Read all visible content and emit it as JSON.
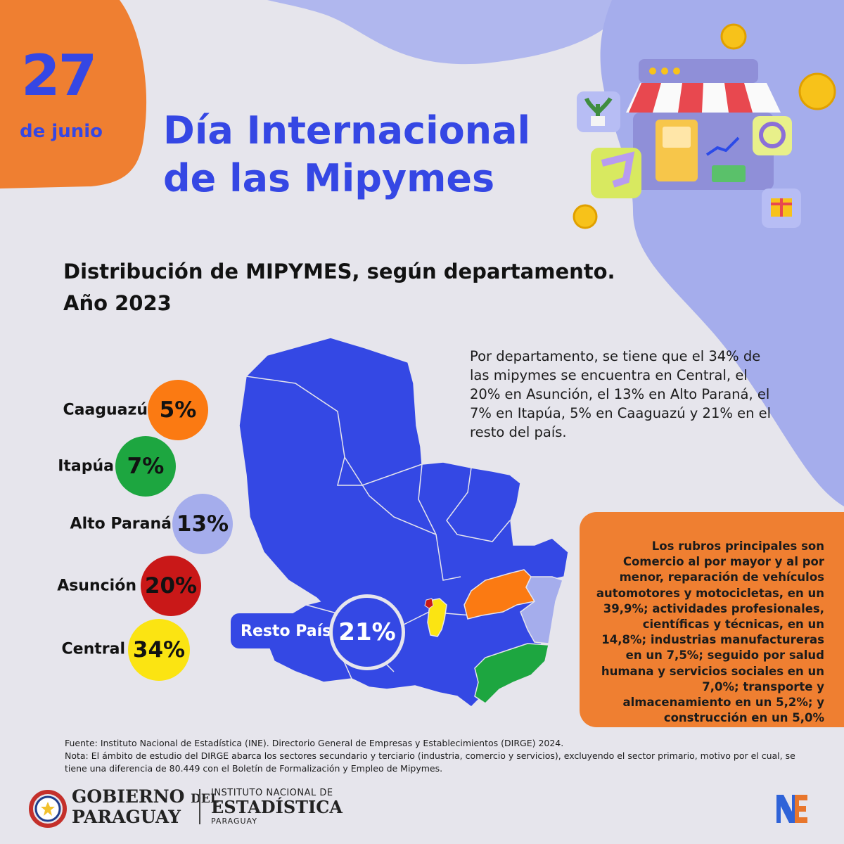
{
  "date": {
    "day": "27",
    "month": "de junio"
  },
  "title": {
    "line1": "Día Internacional",
    "line2": "de las Mipymes"
  },
  "subtitle": {
    "line1": "Distribución de MIPYMES, según departamento.",
    "line2": "Año 2023"
  },
  "colors": {
    "background": "#e6e5ec",
    "accent_blue": "#3547e4",
    "accent_orange": "#ef7f31",
    "lavender": "#a5adec",
    "caaguazu": "#fb7a12",
    "itapua": "#1da640",
    "alto_parana": "#a5adec",
    "asuncion": "#c91818",
    "central": "#fbe412",
    "resto": "#3448e4"
  },
  "chart_data": {
    "type": "bar",
    "title": "Distribución de MIPYMES, según departamento. Año 2023",
    "categories": [
      "Caaguazú",
      "Itapúa",
      "Alto Paraná",
      "Asunción",
      "Central",
      "Resto País"
    ],
    "values": [
      5,
      7,
      13,
      20,
      34,
      21
    ],
    "labels": [
      "5%",
      "7%",
      "13%",
      "20%",
      "34%",
      "21%"
    ],
    "unit": "%"
  },
  "description": "Por departamento, se tiene que el 34% de las mipymes se encuentra en Central, el 20% en Asunción, el 13% en Alto Paraná, el 7% en Itapúa, 5% en Caaguazú y 21% en el resto del país.",
  "sectors": "Los rubros principales son Comercio al por mayor y al por menor, reparación de vehículos automotores y motocicletas, en un 39,9%; actividades profesionales, científicas y técnicas, en un 14,8%; industrias manufactureras en un 7,5%; seguido por salud humana y servicios sociales en un 7,0%; transporte y almacenamiento en un 5,2%; y construcción en un 5,0%",
  "footnote": {
    "source": "Fuente: Instituto Nacional de Estadística (INE). Directorio General de Empresas y Establecimientos (DIRGE) 2024.",
    "note": "Nota: El ámbito de estudio del DIRGE abarca los sectores secundario y terciario (industria, comercio y servicios), excluyendo el sector primario, motivo por el cual, se tiene una diferencia de 80.449 con el Boletín de Formalización y Empleo de Mipymes."
  },
  "logos": {
    "gov_line1": "GOBIERNO",
    "gov_del": "DEL",
    "gov_line2": "PARAGUAY",
    "ine_top": "INSTITUTO NACIONAL DE",
    "ine_mid": "ESTADÍSTICA",
    "ine_bot": "PARAGUAY"
  }
}
